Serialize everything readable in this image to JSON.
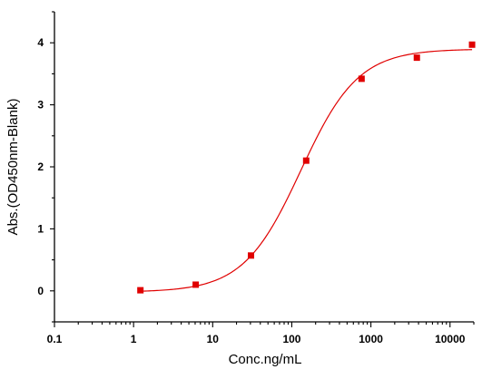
{
  "chart_data": {
    "type": "scatter",
    "title": "",
    "xlabel": "Conc.ng/mL",
    "ylabel": "Abs.(OD450nm-Blank)",
    "x_scale": "log",
    "xlim": [
      0.1,
      20000
    ],
    "ylim": [
      -0.5,
      4.5
    ],
    "x_ticks": [
      0.1,
      1,
      10,
      100,
      1000,
      10000
    ],
    "x_tick_labels": [
      "0.1",
      "1",
      "10",
      "100",
      "1000",
      "10000"
    ],
    "y_ticks": [
      0,
      1,
      2,
      3,
      4
    ],
    "y_tick_labels": [
      "0",
      "1",
      "2",
      "3",
      "4"
    ],
    "grid": false,
    "legend": "none",
    "series": [
      {
        "marker": "square",
        "color": "#e00000",
        "x": [
          1.22,
          6.1,
          30.5,
          152,
          762,
          3810,
          19000
        ],
        "y": [
          0.01,
          0.1,
          0.57,
          2.1,
          3.42,
          3.76,
          3.97
        ]
      }
    ],
    "fit": {
      "type": "4PL",
      "color": "#e00000",
      "bottom": -0.02,
      "top": 3.9,
      "ec50": 130,
      "hill": 1.2
    }
  }
}
